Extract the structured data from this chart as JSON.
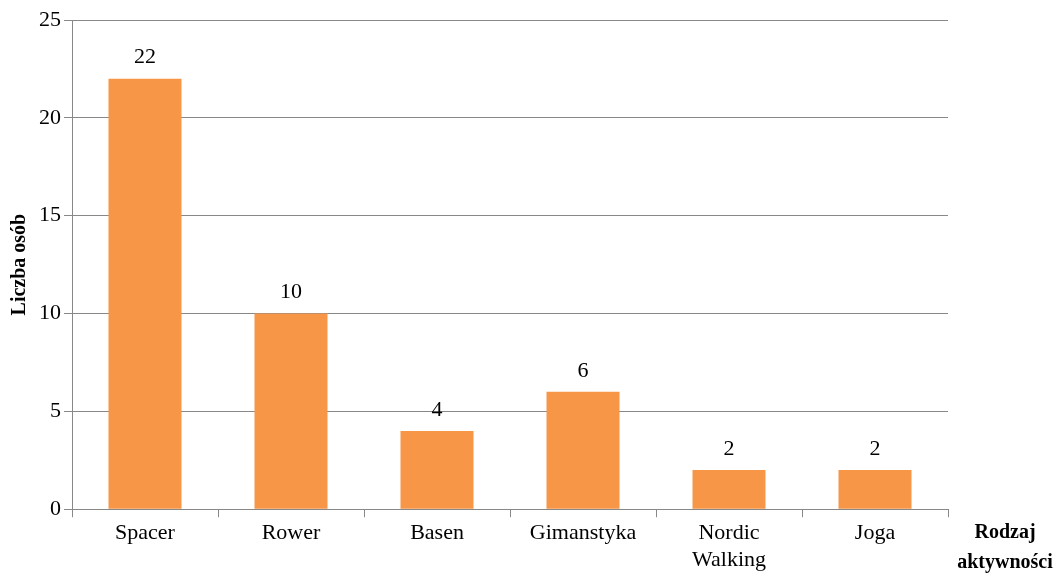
{
  "chart_data": {
    "type": "bar",
    "xlabel": "Rodzaj aktywności",
    "ylabel": "Liczba osób",
    "categories": [
      "Spacer",
      "Rower",
      "Basen",
      "Gimanstyka",
      "Nordic Walking",
      "Joga"
    ],
    "values": [
      22,
      10,
      4,
      6,
      2,
      2
    ],
    "color": "#f79646",
    "ylim": [
      0,
      25
    ],
    "yticks": [
      0,
      5,
      10,
      15,
      20,
      25
    ],
    "grid": "y",
    "legend": false,
    "data_labels": true
  }
}
